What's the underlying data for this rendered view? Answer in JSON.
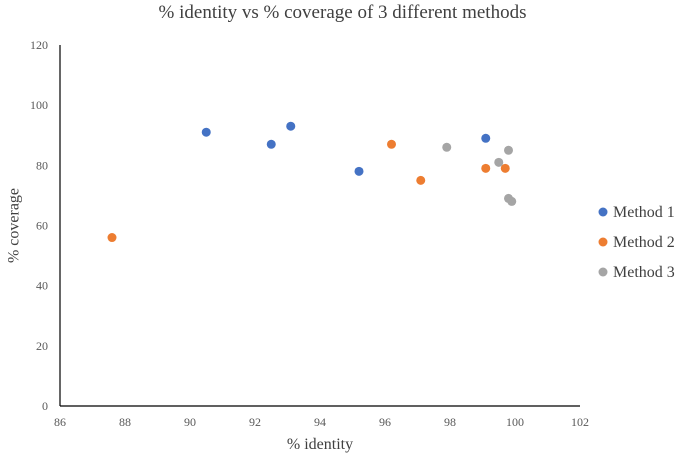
{
  "chart_data": {
    "type": "scatter",
    "title": "% identity vs % coverage of 3 different methods",
    "xlabel": "% identity",
    "ylabel": "% coverage",
    "xlim": [
      86,
      102
    ],
    "ylim": [
      0,
      120
    ],
    "x_ticks": [
      86,
      88,
      90,
      92,
      94,
      96,
      98,
      100,
      102
    ],
    "y_ticks": [
      0,
      20,
      40,
      60,
      80,
      100,
      120
    ],
    "grid": false,
    "legend_position": "right",
    "series": [
      {
        "name": "Method 1",
        "color": "#4472C4",
        "points": [
          {
            "x": 90.5,
            "y": 91
          },
          {
            "x": 92.5,
            "y": 87
          },
          {
            "x": 93.1,
            "y": 93
          },
          {
            "x": 95.2,
            "y": 78
          },
          {
            "x": 99.1,
            "y": 89
          }
        ]
      },
      {
        "name": "Method 2",
        "color": "#ED7D31",
        "points": [
          {
            "x": 87.6,
            "y": 56
          },
          {
            "x": 96.2,
            "y": 87
          },
          {
            "x": 97.1,
            "y": 75
          },
          {
            "x": 99.1,
            "y": 79
          },
          {
            "x": 99.7,
            "y": 79
          }
        ]
      },
      {
        "name": "Method 3",
        "color": "#A5A5A5",
        "points": [
          {
            "x": 97.9,
            "y": 86
          },
          {
            "x": 99.5,
            "y": 81
          },
          {
            "x": 99.8,
            "y": 85
          },
          {
            "x": 99.8,
            "y": 69
          },
          {
            "x": 99.9,
            "y": 68
          }
        ]
      }
    ]
  }
}
